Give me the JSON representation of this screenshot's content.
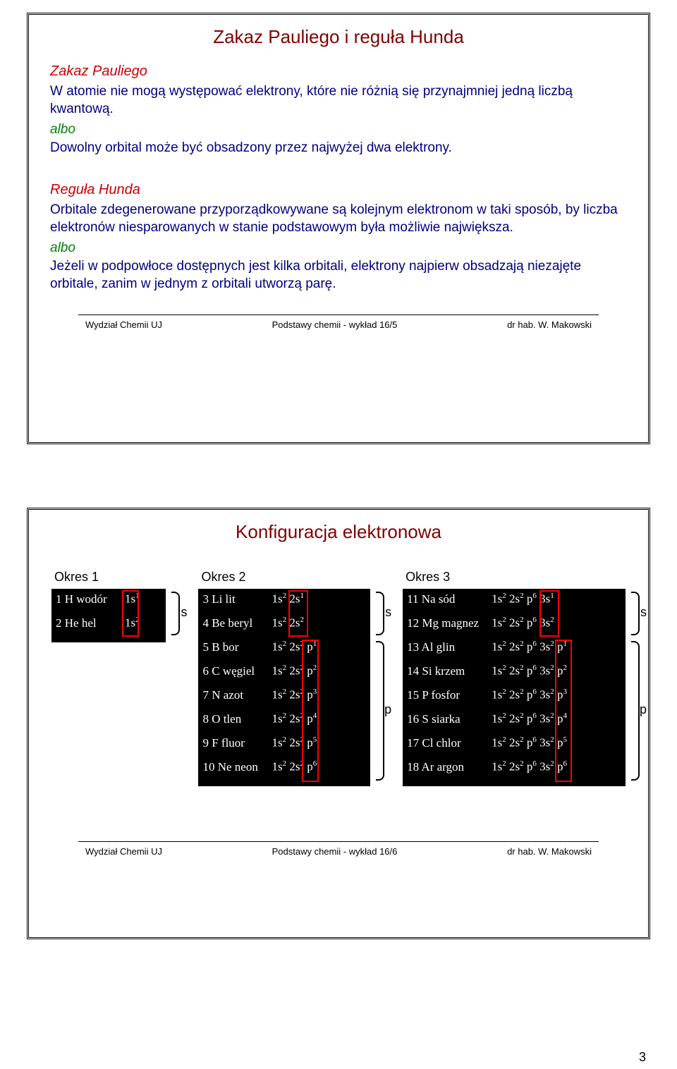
{
  "slide1": {
    "title": "Zakaz Pauliego i reguła Hunda",
    "heading1": "Zakaz Pauliego",
    "body1": "W atomie nie mogą występować elektrony, które nie różnią się przynajmniej jedną liczbą kwantową.",
    "albo": "albo",
    "body2": "Dowolny orbital może być obsadzony przez najwyżej dwa elektrony.",
    "heading2": "Reguła Hunda",
    "body3": "Orbitale zdegenerowane przyporządkowywane są kolejnym elektronom w taki sposób, by liczba elektronów niesparowanych w stanie podstawowym była możliwie największa.",
    "body4": "Jeżeli w podpowłoce dostępnych jest kilka orbitali, elektrony najpierw obsadzają niezajęte orbitale, zanim w jednym z orbitali utworzą parę.",
    "footer_left": "Wydział Chemii UJ",
    "footer_mid": "Podstawy chemii - wykład 16/5",
    "footer_right": "dr hab. W. Makowski"
  },
  "slide2": {
    "title": "Konfiguracja elektronowa",
    "period1_label": "Okres 1",
    "period2_label": "Okres 2",
    "period3_label": "Okres 3",
    "s_label": "s",
    "p_label": "p",
    "period1": [
      {
        "name": "1 H wodór",
        "conf": [
          [
            "1s",
            "1"
          ]
        ]
      },
      {
        "name": "2 He hel",
        "conf": [
          [
            "1s",
            "2"
          ]
        ]
      }
    ],
    "period2": [
      {
        "name": "3 Li lit",
        "conf": [
          [
            "1s",
            "2"
          ],
          [
            "2s",
            "1"
          ]
        ]
      },
      {
        "name": "4 Be beryl",
        "conf": [
          [
            "1s",
            "2"
          ],
          [
            "2s",
            "2"
          ]
        ]
      },
      {
        "name": "5 B bor",
        "conf": [
          [
            "1s",
            "2"
          ],
          [
            "2s",
            "2"
          ],
          [
            "p",
            "1"
          ]
        ]
      },
      {
        "name": "6 C węgiel",
        "conf": [
          [
            "1s",
            "2"
          ],
          [
            "2s",
            "2"
          ],
          [
            "p",
            "2"
          ]
        ]
      },
      {
        "name": "7 N azot",
        "conf": [
          [
            "1s",
            "2"
          ],
          [
            "2s",
            "2"
          ],
          [
            "p",
            "3"
          ]
        ]
      },
      {
        "name": "8 O tlen",
        "conf": [
          [
            "1s",
            "2"
          ],
          [
            "2s",
            "2"
          ],
          [
            "p",
            "4"
          ]
        ]
      },
      {
        "name": "9 F fluor",
        "conf": [
          [
            "1s",
            "2"
          ],
          [
            "2s",
            "2"
          ],
          [
            "p",
            "5"
          ]
        ]
      },
      {
        "name": "10 Ne neon",
        "conf": [
          [
            "1s",
            "2"
          ],
          [
            "2s",
            "2"
          ],
          [
            "p",
            "6"
          ]
        ]
      }
    ],
    "period3": [
      {
        "name": "11 Na sód",
        "conf": [
          [
            "1s",
            "2"
          ],
          [
            "2s",
            "2"
          ],
          [
            "p",
            "6"
          ],
          [
            "3s",
            "1"
          ]
        ]
      },
      {
        "name": "12 Mg magnez",
        "conf": [
          [
            "1s",
            "2"
          ],
          [
            "2s",
            "2"
          ],
          [
            "p",
            "6"
          ],
          [
            "3s",
            "2"
          ]
        ]
      },
      {
        "name": "13 Al glin",
        "conf": [
          [
            "1s",
            "2"
          ],
          [
            "2s",
            "2"
          ],
          [
            "p",
            "6"
          ],
          [
            "3s",
            "2"
          ],
          [
            "p",
            "1"
          ]
        ]
      },
      {
        "name": "14 Si krzem",
        "conf": [
          [
            "1s",
            "2"
          ],
          [
            "2s",
            "2"
          ],
          [
            "p",
            "6"
          ],
          [
            "3s",
            "2"
          ],
          [
            "p",
            "2"
          ]
        ]
      },
      {
        "name": "15 P fosfor",
        "conf": [
          [
            "1s",
            "2"
          ],
          [
            "2s",
            "2"
          ],
          [
            "p",
            "6"
          ],
          [
            "3s",
            "2"
          ],
          [
            "p",
            "3"
          ]
        ]
      },
      {
        "name": "16 S siarka",
        "conf": [
          [
            "1s",
            "2"
          ],
          [
            "2s",
            "2"
          ],
          [
            "p",
            "6"
          ],
          [
            "3s",
            "2"
          ],
          [
            "p",
            "4"
          ]
        ]
      },
      {
        "name": "17 Cl chlor",
        "conf": [
          [
            "1s",
            "2"
          ],
          [
            "2s",
            "2"
          ],
          [
            "p",
            "6"
          ],
          [
            "3s",
            "2"
          ],
          [
            "p",
            "5"
          ]
        ]
      },
      {
        "name": "18 Ar argon",
        "conf": [
          [
            "1s",
            "2"
          ],
          [
            "2s",
            "2"
          ],
          [
            "p",
            "6"
          ],
          [
            "3s",
            "2"
          ],
          [
            "p",
            "6"
          ]
        ]
      }
    ],
    "footer_left": "Wydział Chemii UJ",
    "footer_mid": "Podstawy chemii - wykład 16/6",
    "footer_right": "dr hab. W. Makowski",
    "colors": {
      "title": "#800000",
      "heading": "#cc0000",
      "body": "#000080",
      "albo": "#008000",
      "red_box": "#ff0000",
      "black_bg": "#000000",
      "white": "#ffffff"
    }
  },
  "page_number": "3"
}
